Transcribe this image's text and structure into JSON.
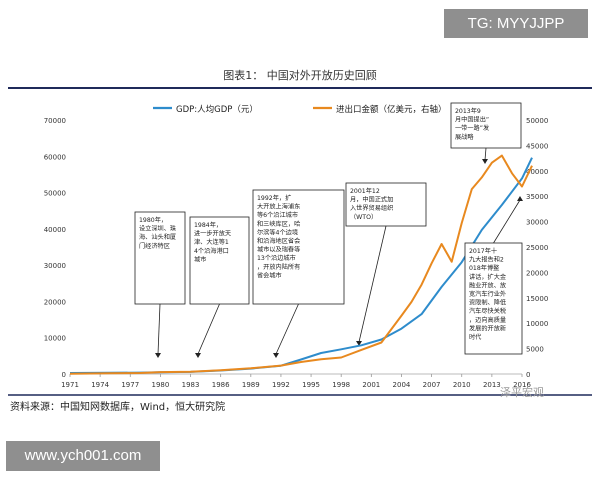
{
  "watermark_top": "TG: MYYJJPP",
  "watermark_bottom": "www.ych001.com",
  "watermark_wechat": "泽平宏观",
  "source_note": "资料来源：中国知网数据库，Wind，恒大研究院",
  "colors": {
    "gdp": "#2e8ccc",
    "trade": "#e8891f",
    "rule": "#1f2a5a"
  },
  "chart_data": {
    "type": "line",
    "title": "图表1：   中国对外开放历史回顾",
    "x": [
      1971,
      1974,
      1977,
      1980,
      1983,
      1986,
      1989,
      1992,
      1995,
      1998,
      2001,
      2004,
      2007,
      2010,
      2013,
      2016
    ],
    "x_tick_labels": [
      "1971",
      "1974",
      "1977",
      "1980",
      "1983",
      "1986",
      "1989",
      "1992",
      "1995",
      "1998",
      "2001",
      "2004",
      "2007",
      "2010",
      "2013",
      "2016"
    ],
    "y_left_lim": [
      0,
      70000
    ],
    "y_left_ticks": [
      "0",
      "10000",
      "20000",
      "30000",
      "40000",
      "50000",
      "60000",
      "70000"
    ],
    "y_right_lim": [
      0,
      50000
    ],
    "y_right_ticks": [
      "0",
      "5000",
      "10000",
      "15000",
      "20000",
      "25000",
      "30000",
      "35000",
      "40000",
      "45000",
      "50000"
    ],
    "legend": {
      "position": "top"
    },
    "series": [
      {
        "name": "GDP:人均GDP（元）",
        "axis": "left",
        "x": [
          1971,
          1975,
          1978,
          1980,
          1983,
          1986,
          1989,
          1992,
          1994,
          1996,
          1998,
          2000,
          2002,
          2004,
          2006,
          2008,
          2010,
          2012,
          2014,
          2016,
          2017
        ],
        "y": [
          280,
          330,
          380,
          470,
          590,
          960,
          1500,
          2300,
          4000,
          5800,
          6800,
          7900,
          9500,
          12500,
          16500,
          24000,
          30800,
          39700,
          46600,
          53900,
          59600
        ]
      },
      {
        "name": "进出口金额（亿美元，右轴）",
        "axis": "right",
        "x": [
          1971,
          1975,
          1978,
          1980,
          1983,
          1986,
          1989,
          1992,
          1994,
          1996,
          1998,
          2000,
          2002,
          2004,
          2005,
          2006,
          2007,
          2008,
          2009,
          2010,
          2011,
          2012,
          2013,
          2014,
          2015,
          2016,
          2017
        ],
        "y": [
          50,
          150,
          200,
          380,
          440,
          740,
          1120,
          1660,
          2370,
          2900,
          3240,
          4740,
          6200,
          11500,
          14200,
          17600,
          21800,
          25600,
          22100,
          29700,
          36400,
          38700,
          41600,
          43000,
          39500,
          36900,
          41000
        ]
      }
    ],
    "annotations": [
      {
        "text": "1980年，设立深圳、珠海、汕头和厦门经济特区",
        "year": 1980
      },
      {
        "text": "1984年，进一步开放天津、大连等14个沿海港口城市",
        "year": 1984
      },
      {
        "text": "1992年，扩大开放上海浦东等6个沿江城市和三峡库区，哈尔滨等4个边境和沿海地区省会城市以及瑞春等13个沿边城市，开放内陆所有省会城市",
        "year": 1992
      },
      {
        "text": "2001年12月，中国正式加入世界贸易组织（WTO）",
        "year": 2001
      },
      {
        "text": "2013年9月中国提出“一带一路”发展战略",
        "year": 2013
      },
      {
        "text": "2017年十九大报告和2018年博鳌讲话，扩大金融业开放、放宽汽车行业外资限制、降低汽车尽快关税，迈向高质量发展的开放新时代",
        "year": 2017
      }
    ]
  }
}
